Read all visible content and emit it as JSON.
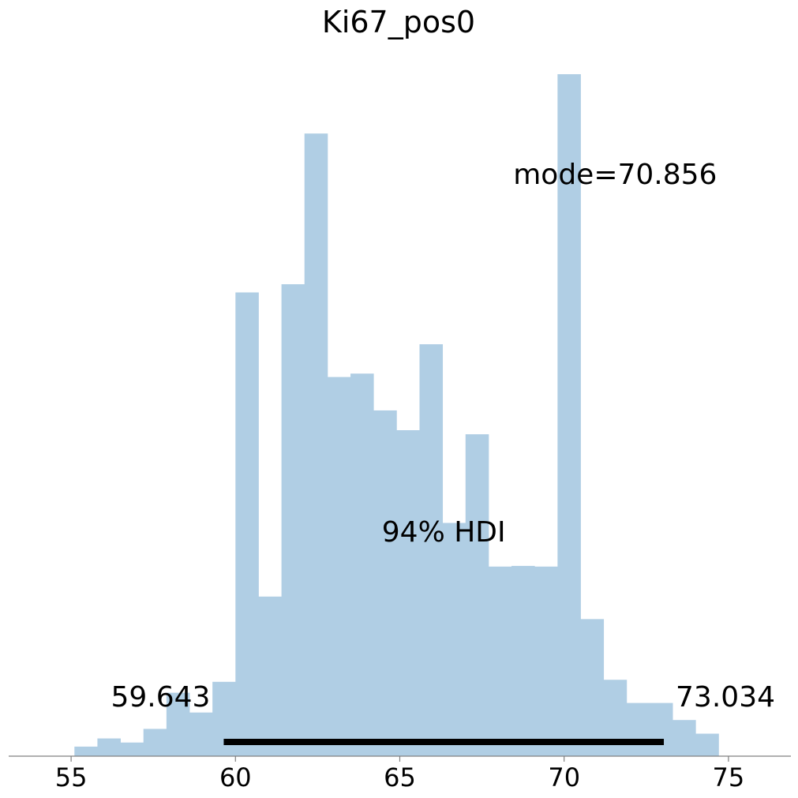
{
  "chart_data": {
    "type": "bar",
    "title": "Ki67_pos0",
    "xlabel": "",
    "ylabel": "",
    "xlim": [
      53.1,
      76.9
    ],
    "bin_start": 55.1,
    "bin_width": 0.7,
    "values": [
      0.014,
      0.026,
      0.02,
      0.04,
      0.093,
      0.064,
      0.109,
      0.68,
      0.234,
      0.692,
      0.913,
      0.556,
      0.561,
      0.507,
      0.478,
      0.604,
      0.342,
      0.472,
      0.278,
      0.279,
      0.278,
      1.0,
      0.201,
      0.112,
      0.078,
      0.078,
      0.053,
      0.033
    ],
    "ylim": [
      0,
      1.12
    ],
    "bar_color": "#b0cee4",
    "xticks": [
      55,
      60,
      65,
      70,
      75
    ],
    "xtick_labels": [
      "55",
      "60",
      "65",
      "70",
      "75"
    ],
    "hdi": {
      "low": 59.643,
      "high": 73.034,
      "low_label": "59.643",
      "high_label": "73.034",
      "label": "94% HDI",
      "color": "#000000"
    },
    "mode": {
      "value": 70.856,
      "label": "mode=70.856"
    },
    "grid": false,
    "legend": "none"
  }
}
